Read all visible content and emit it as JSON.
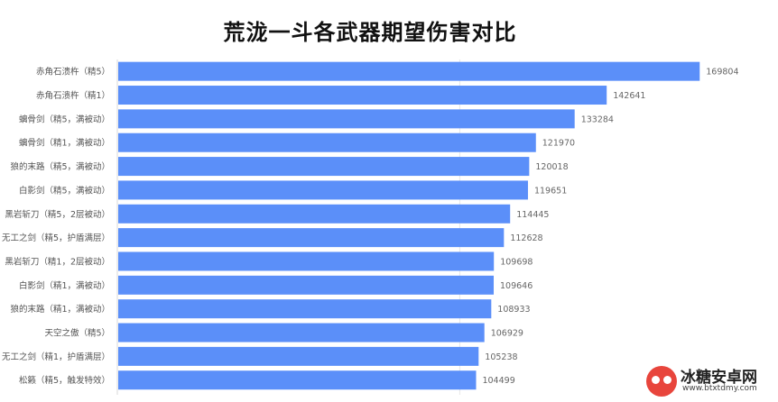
{
  "chart_data": {
    "type": "bar",
    "orientation": "horizontal",
    "title": "荒泷一斗各武器期望伤害对比",
    "xlabel": "",
    "ylabel": "",
    "xlim": [
      0,
      170000
    ],
    "grid": true,
    "legend": "none",
    "bar_color": "#5b8ff9",
    "categories": [
      "赤角石溃杵（精5）",
      "赤角石溃杵（精1）",
      "螭骨剑（精5，满被动）",
      "螭骨剑（精1，满被动）",
      "狼的末路（精5，满被动）",
      "白影剑（精5，满被动）",
      "黑岩斩刀（精5，2层被动）",
      "无工之剑（精5，护盾满层）",
      "黑岩斩刀（精1，2层被动）",
      "白影剑（精1，满被动）",
      "狼的末路（精1，满被动）",
      "天空之傲（精5）",
      "无工之剑（精1，护盾满层）",
      "松籁（精5，触发特效）"
    ],
    "values": [
      169804,
      142641,
      133284,
      121970,
      120018,
      119651,
      114445,
      112628,
      109698,
      109646,
      108933,
      106929,
      105238,
      104499
    ]
  },
  "watermark": {
    "name": "冰糖安卓网",
    "url": "www.btxtdmy.com"
  }
}
